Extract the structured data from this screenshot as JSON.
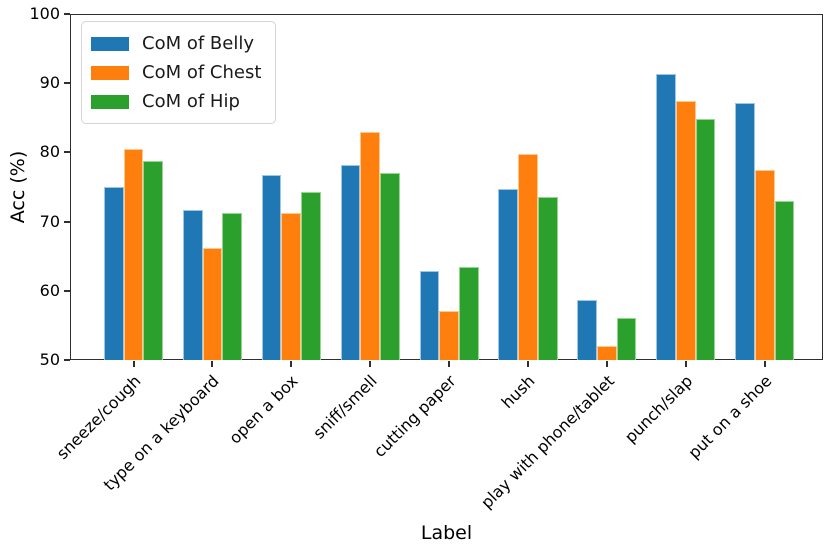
{
  "chart_data": {
    "type": "bar",
    "title": "",
    "xlabel": "Label",
    "ylabel": "Acc (%)",
    "ylim": [
      50,
      100
    ],
    "yticks": [
      50,
      60,
      70,
      80,
      90,
      100
    ],
    "grid": false,
    "legend_position": "upper left",
    "background": "#ffffff",
    "axis_color": "#2f2f2f",
    "categories": [
      "sneeze/cough",
      "type on a keyboard",
      "open a box",
      "sniff/smell",
      "cutting paper",
      "hush",
      "play with phone/tablet",
      "punch/slap",
      "put on a shoe"
    ],
    "series": [
      {
        "name": "CoM of Belly",
        "color": "#1f77b4",
        "edge_color": "#9fc6e8",
        "values": [
          75.0,
          71.7,
          76.8,
          78.2,
          62.8,
          74.7,
          58.6,
          91.4,
          87.1
        ]
      },
      {
        "name": "CoM of Chest",
        "color": "#ff7f0e",
        "edge_color": "#ffc98c",
        "values": [
          80.5,
          66.2,
          71.2,
          82.9,
          57.1,
          79.8,
          52.0,
          87.4,
          77.5
        ]
      },
      {
        "name": "CoM of Hip",
        "color": "#2ca02c",
        "edge_color": "#98d594",
        "values": [
          78.8,
          71.3,
          74.3,
          77.0,
          63.4,
          73.6,
          56.0,
          84.8,
          73.0
        ]
      }
    ]
  }
}
